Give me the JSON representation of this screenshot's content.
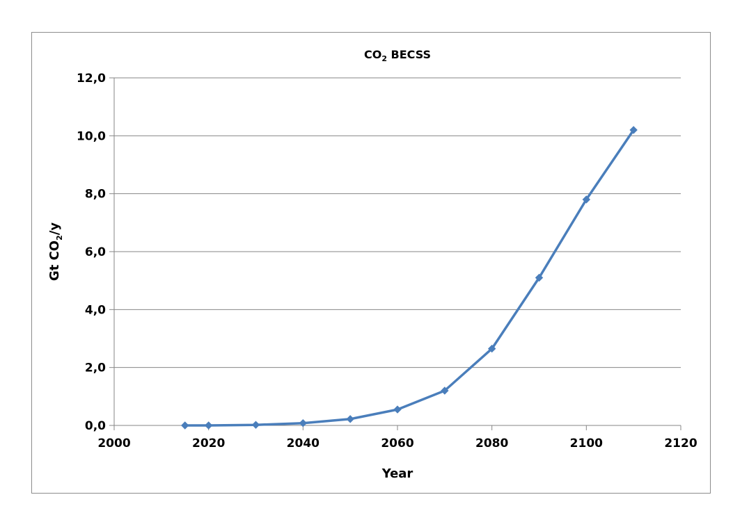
{
  "chart_data": {
    "type": "line",
    "title": "CO2 BECSS",
    "title_parts": {
      "main": "CO",
      "subscript": "2",
      "rest": " BECSS"
    },
    "xlabel": "Year",
    "ylabel": "Gt CO2/y",
    "ylabel_parts": {
      "main": "Gt CO",
      "subscript": "2",
      "rest": "/y"
    },
    "xlim": [
      2000,
      2120
    ],
    "ylim": [
      0,
      12
    ],
    "x_ticks": [
      "2000",
      "2020",
      "2040",
      "2060",
      "2080",
      "2100",
      "2120"
    ],
    "y_ticks": [
      "0,0",
      "2,0",
      "4,0",
      "6,0",
      "8,0",
      "10,0",
      "12,0"
    ],
    "grid": {
      "horizontal": true,
      "vertical": false
    },
    "legend": "none",
    "series": [
      {
        "color": "#4a7ebb",
        "marker": "diamond",
        "x": [
          2015,
          2020,
          2030,
          2040,
          2050,
          2060,
          2070,
          2080,
          2090,
          2100,
          2110
        ],
        "y": [
          0.0,
          0.0,
          0.02,
          0.08,
          0.22,
          0.55,
          1.2,
          2.65,
          5.1,
          7.8,
          10.2
        ]
      }
    ]
  }
}
